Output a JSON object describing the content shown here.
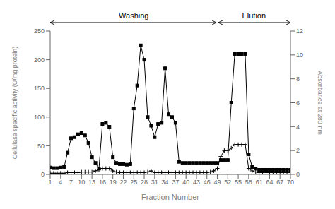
{
  "chart_data": {
    "type": "line",
    "x_label": "Fraction Number",
    "y_label": "Cellulase specific activity (U/mg protein)",
    "y2_label": "Absorbance at 280 nm",
    "x": [
      1,
      2,
      3,
      4,
      5,
      6,
      7,
      8,
      9,
      10,
      11,
      12,
      13,
      14,
      15,
      16,
      17,
      18,
      19,
      20,
      21,
      22,
      23,
      24,
      25,
      26,
      27,
      28,
      29,
      30,
      31,
      32,
      33,
      34,
      35,
      36,
      37,
      38,
      39,
      40,
      41,
      42,
      43,
      44,
      45,
      46,
      47,
      48,
      49,
      50,
      51,
      52,
      53,
      54,
      55,
      56,
      57,
      58,
      59,
      60,
      61,
      62,
      63,
      64,
      65,
      66,
      67,
      68,
      69,
      70
    ],
    "xlim": [
      1,
      70
    ],
    "xticks": [
      1,
      4,
      7,
      10,
      13,
      16,
      19,
      22,
      25,
      28,
      31,
      34,
      37,
      40,
      43,
      46,
      49,
      52,
      55,
      58,
      61,
      64,
      67,
      70
    ],
    "ylim": [
      0,
      250
    ],
    "yticks": [
      0,
      50,
      100,
      150,
      200,
      250
    ],
    "y2lim": [
      0,
      12
    ],
    "y2ticks": [
      0,
      2,
      4,
      6,
      8,
      10,
      12
    ],
    "grid": false,
    "annotations": [
      {
        "text": "Washing",
        "x": [
          1,
          49
        ]
      },
      {
        "text": "Elution",
        "x": [
          49,
          70
        ]
      }
    ],
    "series": [
      {
        "color": "black",
        "marker": "square",
        "values": [
          12,
          11,
          11,
          12,
          13,
          38,
          63,
          65,
          70,
          72,
          68,
          55,
          30,
          20,
          10,
          88,
          90,
          83,
          30,
          20,
          18,
          18,
          17,
          18,
          115,
          155,
          225,
          200,
          100,
          85,
          65,
          88,
          90,
          185,
          105,
          100,
          90,
          22,
          20,
          20,
          20,
          20,
          20,
          20,
          20,
          20,
          20,
          20,
          20,
          25,
          25,
          25,
          125,
          210,
          210,
          210,
          210,
          35,
          13,
          10,
          8,
          8,
          8,
          8,
          8,
          8,
          8,
          8,
          8,
          8
        ]
      },
      {
        "color": "black",
        "marker": "plus",
        "axis": "y2",
        "values": [
          0.1,
          0.1,
          0.1,
          0.1,
          0.1,
          0.15,
          0.15,
          0.15,
          0.15,
          0.2,
          0.2,
          0.2,
          0.2,
          0.3,
          0.4,
          0.5,
          0.5,
          0.5,
          0.3,
          0.2,
          0.15,
          0.15,
          0.15,
          0.15,
          0.15,
          0.15,
          0.15,
          0.15,
          0.2,
          0.3,
          0.15,
          0.15,
          0.15,
          0.15,
          0.15,
          0.15,
          0.15,
          0.15,
          0.15,
          0.15,
          0.15,
          0.15,
          0.15,
          0.15,
          0.15,
          0.15,
          0.2,
          0.3,
          0.5,
          1.5,
          2.0,
          2.0,
          2.2,
          2.5,
          2.5,
          2.5,
          2.5,
          0.5,
          0.3,
          0.2,
          0.15,
          0.15,
          0.15,
          0.15,
          0.15,
          0.15,
          0.15,
          0.15,
          0.15,
          0.15
        ]
      }
    ]
  }
}
